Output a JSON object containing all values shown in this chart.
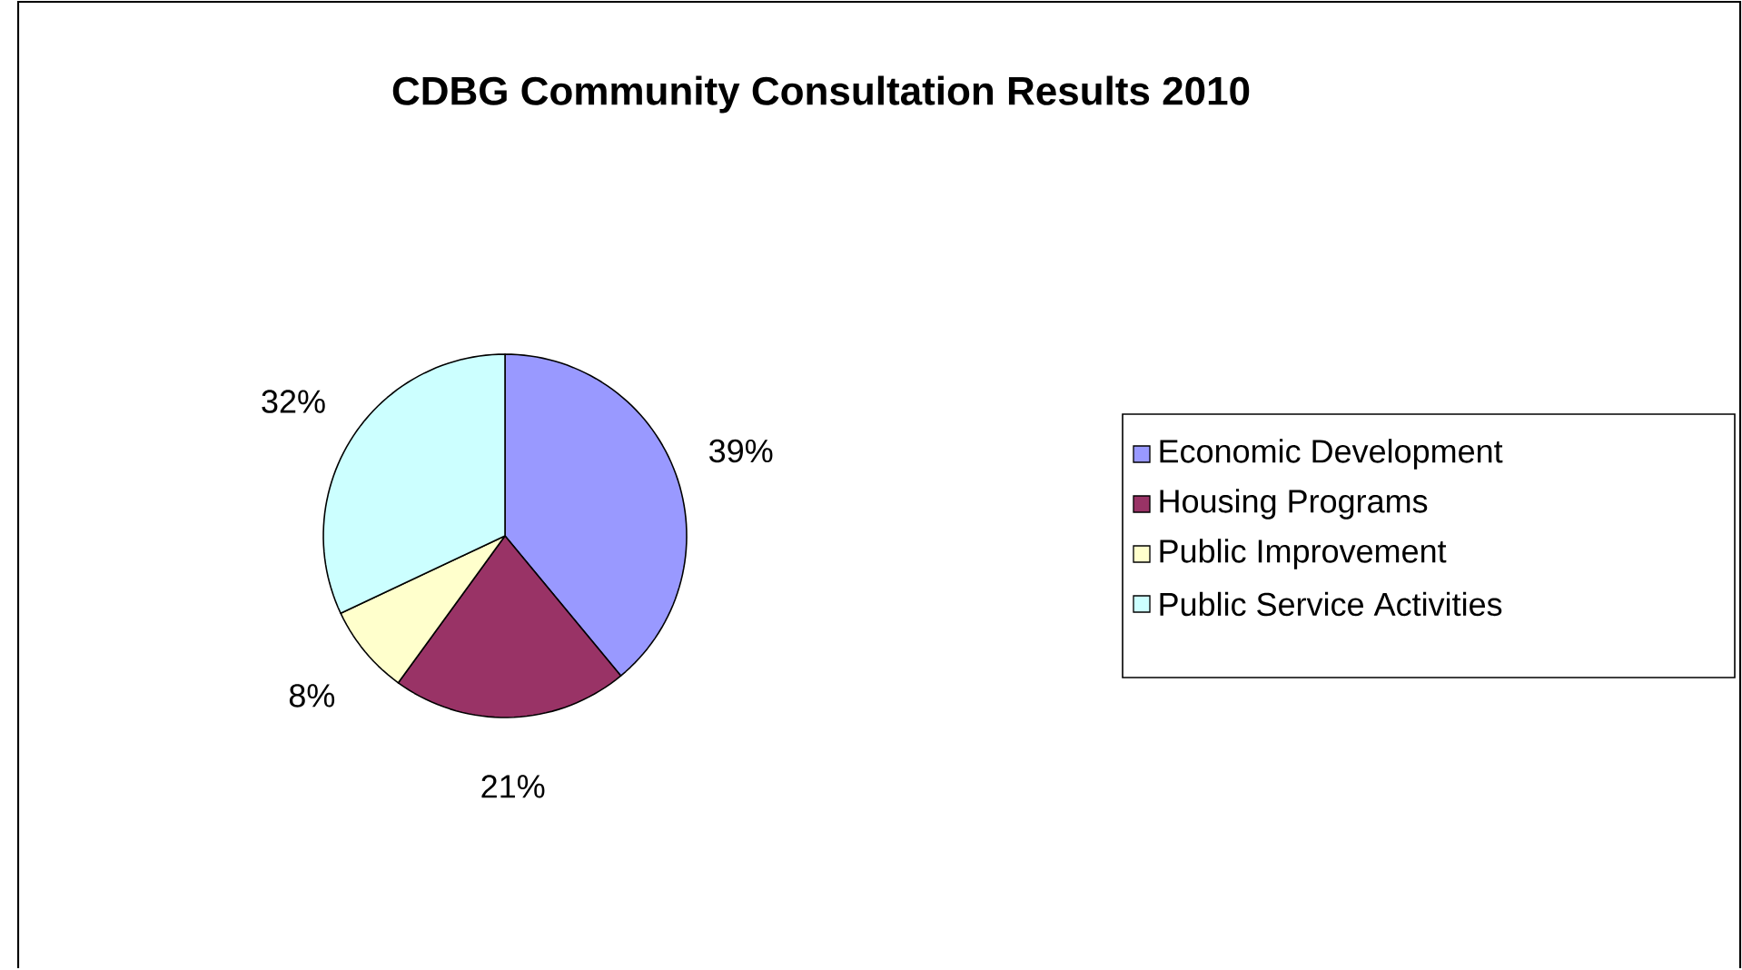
{
  "chart_data": {
    "type": "pie",
    "title": "CDBG Community Consultation Results 2010",
    "categories": [
      "Economic Development",
      "Housing Programs",
      "Public Improvement",
      "Public Service Activities"
    ],
    "values": [
      39,
      21,
      8,
      32
    ],
    "value_labels": [
      "39%",
      "21%",
      "8%",
      "32%"
    ],
    "colors": [
      "#9999ff",
      "#993366",
      "#ffffcc",
      "#ccffff"
    ],
    "legend": "right"
  }
}
